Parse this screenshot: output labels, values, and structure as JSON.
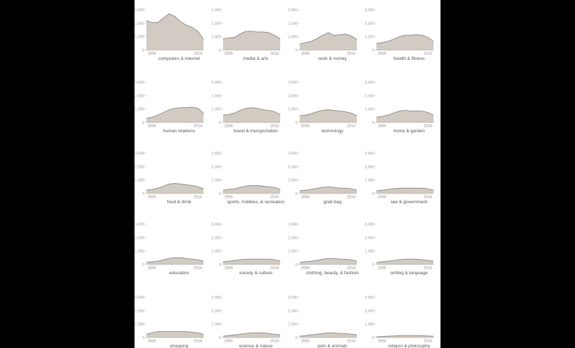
{
  "chart_data": {
    "type": "area",
    "y_ticks": [
      0,
      1000,
      2000,
      3000
    ],
    "y_tick_labels": [
      "0",
      "1,000",
      "2,000",
      "3,000"
    ],
    "ylim": [
      0,
      3000
    ],
    "x_tick_labels": [
      "2006",
      "2014"
    ],
    "x": [
      2005,
      2006,
      2007,
      2008,
      2009,
      2010,
      2011,
      2012,
      2013,
      2014,
      2015
    ],
    "fill_color": "#d2cbc3",
    "line_color": "#8c8580",
    "panels": [
      {
        "label": "computers & internet",
        "values": [
          2200,
          2050,
          2050,
          2400,
          2700,
          2500,
          2100,
          1850,
          1700,
          1400,
          800
        ]
      },
      {
        "label": "media & arts",
        "values": [
          850,
          900,
          950,
          1200,
          1400,
          1400,
          1350,
          1350,
          1300,
          1100,
          850
        ]
      },
      {
        "label": "work & money",
        "values": [
          450,
          550,
          650,
          850,
          1100,
          1300,
          1100,
          1150,
          1200,
          1050,
          800
        ]
      },
      {
        "label": "health & fitness",
        "values": [
          500,
          550,
          650,
          800,
          1000,
          1100,
          1100,
          1150,
          1100,
          950,
          650
        ]
      },
      {
        "label": "human relations",
        "values": [
          300,
          400,
          550,
          750,
          950,
          1050,
          1100,
          1100,
          1150,
          1050,
          700
        ]
      },
      {
        "label": "travel & transportation",
        "values": [
          550,
          600,
          700,
          900,
          1050,
          1100,
          1050,
          950,
          900,
          800,
          600
        ]
      },
      {
        "label": "technology",
        "values": [
          500,
          550,
          650,
          800,
          900,
          950,
          900,
          850,
          800,
          700,
          500
        ]
      },
      {
        "label": "home & garden",
        "values": [
          400,
          450,
          550,
          700,
          850,
          900,
          850,
          850,
          850,
          750,
          550
        ]
      },
      {
        "label": "food & drink",
        "values": [
          250,
          300,
          400,
          550,
          700,
          750,
          700,
          650,
          600,
          500,
          350
        ]
      },
      {
        "label": "sports, hobbies, & recreation",
        "values": [
          250,
          300,
          350,
          450,
          550,
          600,
          600,
          550,
          500,
          450,
          300
        ]
      },
      {
        "label": "grab bag",
        "values": [
          200,
          250,
          300,
          400,
          450,
          500,
          450,
          400,
          400,
          350,
          250
        ]
      },
      {
        "label": "law & government",
        "values": [
          200,
          250,
          300,
          350,
          400,
          400,
          400,
          400,
          400,
          350,
          250
        ]
      },
      {
        "label": "education",
        "values": [
          150,
          200,
          250,
          350,
          450,
          500,
          500,
          450,
          400,
          350,
          250
        ]
      },
      {
        "label": "society & culture",
        "values": [
          200,
          250,
          300,
          350,
          400,
          400,
          400,
          400,
          400,
          350,
          250
        ]
      },
      {
        "label": "clothing, beauty, & fashion",
        "values": [
          150,
          200,
          250,
          300,
          400,
          450,
          450,
          400,
          400,
          350,
          250
        ]
      },
      {
        "label": "writing & language",
        "values": [
          150,
          200,
          250,
          300,
          350,
          400,
          400,
          400,
          350,
          300,
          250
        ]
      },
      {
        "label": "shopping",
        "values": [
          250,
          350,
          450,
          450,
          450,
          450,
          450,
          450,
          400,
          350,
          250
        ]
      },
      {
        "label": "science & nature",
        "values": [
          100,
          150,
          200,
          250,
          300,
          350,
          350,
          350,
          300,
          250,
          200
        ]
      },
      {
        "label": "pets & animals",
        "values": [
          100,
          150,
          200,
          250,
          300,
          350,
          350,
          300,
          300,
          250,
          200
        ]
      },
      {
        "label": "religion & philosophy",
        "values": [
          50,
          80,
          100,
          120,
          150,
          150,
          150,
          150,
          150,
          120,
          100
        ]
      }
    ]
  }
}
